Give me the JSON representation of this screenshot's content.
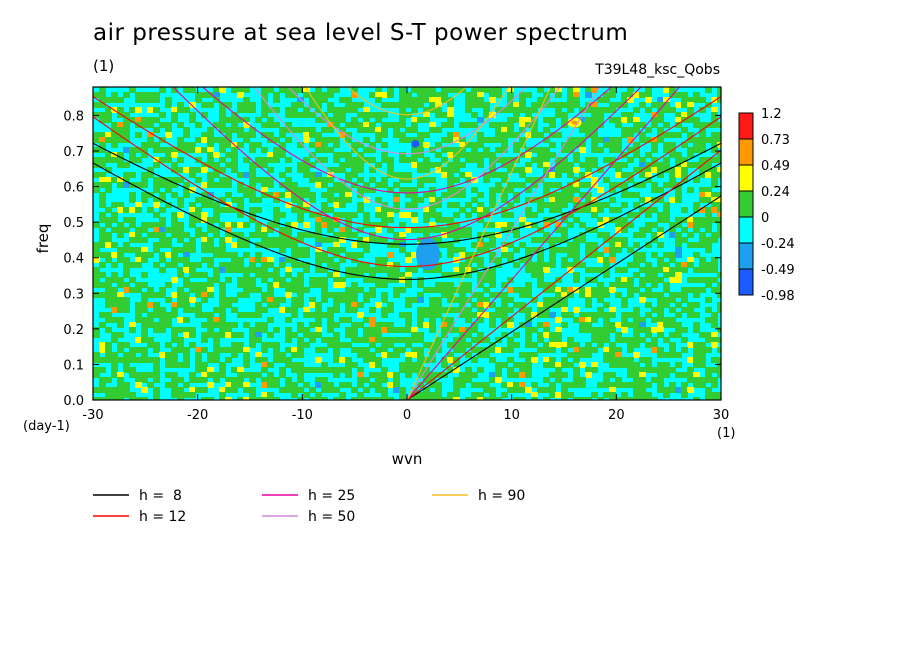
{
  "title": "air pressure at sea level S-T power spectrum",
  "subtitle_left": "(1)",
  "subtitle_right": "T39L48_ksc_Qobs",
  "chart_data": {
    "type": "heatmap",
    "xlabel": "wvn",
    "ylabel": "freq",
    "x_unit": "(1)",
    "y_unit": "(day-1)",
    "xlim": [
      -30,
      30
    ],
    "ylim": [
      0,
      0.88
    ],
    "x_ticks": [
      -30,
      -20,
      -10,
      0,
      10,
      20,
      30
    ],
    "x_tick_labels": [
      "-30",
      "-20",
      "-10",
      "0",
      "10",
      "20",
      "30"
    ],
    "y_ticks": [
      0.0,
      0.1,
      0.2,
      0.3,
      0.4,
      0.5,
      0.6,
      0.7,
      0.8
    ],
    "y_tick_labels": [
      "0.0",
      "0.1",
      "0.2",
      "0.3",
      "0.4",
      "0.5",
      "0.6",
      "0.7",
      "0.8"
    ],
    "colorbar": {
      "levels": [
        "1.2",
        "0.73",
        "0.49",
        "0.24",
        "0",
        "-0.24",
        "-0.49",
        "-0.98"
      ],
      "colors": [
        "#ff1a1a",
        "#ff9900",
        "#ffff00",
        "#33cc33",
        "#00ffff",
        "#1ea0f0",
        "#1a5cff"
      ]
    },
    "field_note": "noisy mixed field dominated by cyan (-0.24..0) and green (0..0.24) with scattered yellow/orange patches and a blue patch near wvn 2, freq 0.4",
    "series": [
      {
        "name": "h =  8",
        "color": "#000000",
        "depth": 8
      },
      {
        "name": "h = 12",
        "color": "#ff0000",
        "depth": 12
      },
      {
        "name": "h = 25",
        "color": "#e8009a",
        "depth": 25
      },
      {
        "name": "h = 50",
        "color": "#d98ad9",
        "depth": 50
      },
      {
        "name": "h = 90",
        "color": "#f0c020",
        "depth": 90
      }
    ],
    "grid": false,
    "legend_position": "bottom"
  }
}
